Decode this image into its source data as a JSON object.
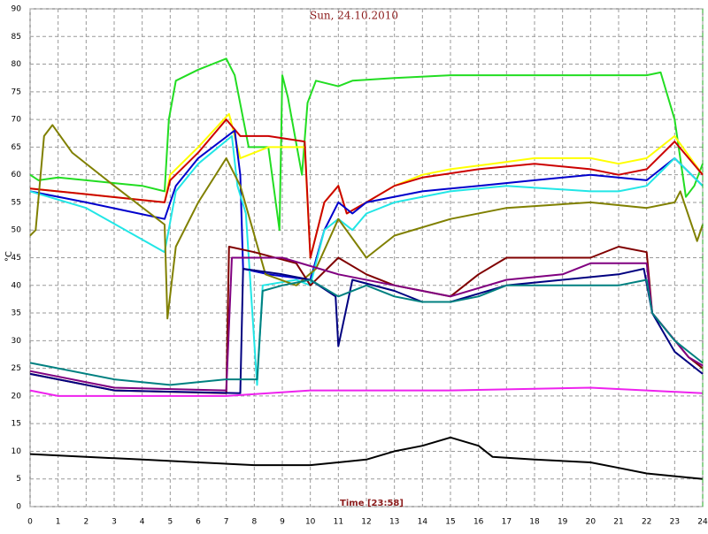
{
  "chart_data": {
    "type": "line",
    "title": "Sun, 24.10.2010",
    "xlabel": "Time [23:58]",
    "ylabel": "°C",
    "xlim": [
      0,
      24
    ],
    "ylim": [
      0,
      90
    ],
    "xticks": [
      0,
      1,
      2,
      3,
      4,
      5,
      6,
      7,
      8,
      9,
      10,
      11,
      12,
      13,
      14,
      15,
      16,
      17,
      18,
      19,
      20,
      21,
      22,
      23,
      24
    ],
    "yticks": [
      0,
      5,
      10,
      15,
      20,
      25,
      30,
      35,
      40,
      45,
      50,
      55,
      60,
      65,
      70,
      75,
      80,
      85,
      90
    ],
    "grid": true,
    "series": [
      {
        "color": "#22dd22",
        "x": [
          0,
          0.3,
          1,
          2,
          3,
          4,
          4.8,
          4.95,
          5.2,
          6,
          7,
          7.1,
          7.3,
          7.8,
          8.5,
          8.9,
          9,
          9.2,
          9.7,
          9.9,
          10.2,
          11,
          11.5,
          13,
          15,
          17,
          19,
          21,
          22,
          22.5,
          23,
          23.4,
          23.7,
          24
        ],
        "values": [
          60,
          59,
          59.5,
          59,
          58.5,
          58,
          57,
          70,
          77,
          79,
          81,
          80,
          78,
          65,
          65,
          50,
          78,
          74,
          60,
          73,
          77,
          76,
          77,
          77.5,
          78,
          78,
          78,
          78,
          78,
          78.5,
          70,
          56,
          58,
          62
        ]
      },
      {
        "color": "#ffff00",
        "x": [
          0,
          2,
          4.8,
          5,
          6,
          7,
          7.1,
          7.5,
          8.5,
          9.8,
          10,
          10.5,
          11,
          11.3,
          12,
          13,
          14,
          15,
          16.5,
          18,
          20,
          21,
          22,
          23,
          24
        ],
        "values": [
          57.5,
          56.5,
          55,
          60,
          65,
          70.5,
          71,
          63,
          65,
          65,
          45,
          55,
          58,
          53,
          55,
          58,
          60,
          61,
          62,
          63,
          63,
          62,
          63,
          67,
          60
        ]
      },
      {
        "color": "#cc0000",
        "x": [
          0,
          2,
          4.8,
          5,
          6,
          7,
          7.5,
          8.5,
          9.8,
          10,
          10.5,
          11,
          11.3,
          12,
          13,
          14,
          16,
          18,
          20,
          21,
          22,
          23,
          24
        ],
        "values": [
          57.5,
          56.5,
          55,
          59,
          64,
          70,
          67,
          67,
          66,
          45,
          55,
          58,
          53,
          55,
          58,
          59.5,
          61,
          62,
          61,
          60,
          61,
          66,
          60
        ]
      },
      {
        "color": "#0000cc",
        "x": [
          0,
          2,
          4.8,
          5.2,
          6,
          7.3,
          7.5,
          7.6,
          8.5,
          10,
          10.5,
          11,
          11.5,
          12,
          14,
          16,
          18,
          20,
          22,
          23,
          24
        ],
        "values": [
          57,
          55,
          52,
          58,
          63,
          68,
          60,
          43,
          42,
          41,
          50,
          55,
          53,
          55,
          57,
          58,
          59,
          60,
          59,
          63,
          58
        ]
      },
      {
        "color": "#22e6e6",
        "x": [
          0,
          2,
          4.8,
          5.2,
          6,
          7.2,
          7.4,
          7.7,
          8.1,
          8.3,
          9.5,
          10,
          10.5,
          11,
          11.5,
          12,
          13,
          15,
          17,
          20,
          21,
          22,
          23,
          24
        ],
        "values": [
          57,
          54,
          46,
          57,
          62,
          67,
          58,
          53,
          22,
          40,
          41,
          40,
          50,
          52,
          50,
          53,
          55,
          57,
          58,
          57,
          57,
          58,
          63,
          58
        ]
      },
      {
        "color": "#808000",
        "x": [
          0,
          0.2,
          0.5,
          0.8,
          1.5,
          3,
          4.8,
          4.9,
          5.2,
          6,
          7,
          7.5,
          8.4,
          9.5,
          10.2,
          11,
          12,
          13,
          15,
          17,
          20,
          22,
          23,
          23.2,
          23.8,
          24
        ],
        "values": [
          49,
          50,
          67,
          69,
          64,
          58,
          51,
          34,
          47,
          55,
          63,
          58,
          42,
          40,
          43,
          52,
          45,
          49,
          52,
          54,
          55,
          54,
          55,
          57,
          48,
          51
        ]
      },
      {
        "color": "#800000",
        "x": [
          0,
          3,
          7,
          7.1,
          8,
          9.5,
          10,
          11,
          12,
          13,
          14,
          15,
          16,
          17,
          20,
          21,
          22,
          22.2,
          23.5,
          24
        ],
        "values": [
          24,
          21,
          20.5,
          47,
          46,
          44,
          40,
          45,
          42,
          40,
          39,
          38,
          42,
          45,
          45,
          47,
          46,
          35,
          27,
          25
        ]
      },
      {
        "color": "#800080",
        "x": [
          0,
          3,
          7,
          7.2,
          9,
          11,
          13,
          15,
          17,
          19,
          20,
          22,
          22.2,
          23.5,
          24
        ],
        "values": [
          24.5,
          21.5,
          21,
          45,
          45,
          42,
          40,
          38,
          41,
          42,
          44,
          44,
          35,
          27,
          25.5
        ]
      },
      {
        "color": "#000080",
        "x": [
          0,
          3,
          7.5,
          7.6,
          9,
          10,
          10.9,
          11,
          11.5,
          13,
          14,
          15,
          17,
          19,
          21,
          21.9,
          22.2,
          23,
          24
        ],
        "values": [
          24,
          21,
          20.5,
          43,
          42,
          41,
          38,
          29,
          41,
          39,
          37,
          37,
          40,
          41,
          42,
          43,
          35,
          28,
          24
        ]
      },
      {
        "color": "#008080",
        "x": [
          0,
          3,
          5,
          7,
          8.1,
          8.3,
          9,
          10,
          11,
          12,
          13,
          14,
          15,
          16,
          17,
          20,
          21,
          22,
          22.2,
          23,
          24
        ],
        "values": [
          26,
          23,
          22,
          23,
          23,
          39,
          40,
          41,
          38,
          40,
          38,
          37,
          37,
          38,
          40,
          40,
          40,
          41,
          35,
          30,
          26
        ]
      },
      {
        "color": "#ee22ee",
        "x": [
          0,
          1,
          7,
          10,
          15,
          20,
          22,
          24
        ],
        "values": [
          21,
          20,
          20,
          21,
          21,
          21.5,
          21,
          20.5
        ]
      },
      {
        "color": "#000000",
        "x": [
          0,
          2,
          4,
          6,
          8,
          10,
          12,
          13,
          14,
          15,
          16,
          16.5,
          18,
          20,
          21,
          22,
          23,
          24
        ],
        "values": [
          9.5,
          9,
          8.5,
          8,
          7.5,
          7.5,
          8.5,
          10,
          11,
          12.5,
          11,
          9,
          8.5,
          8,
          7,
          6,
          5.5,
          5
        ]
      }
    ]
  }
}
